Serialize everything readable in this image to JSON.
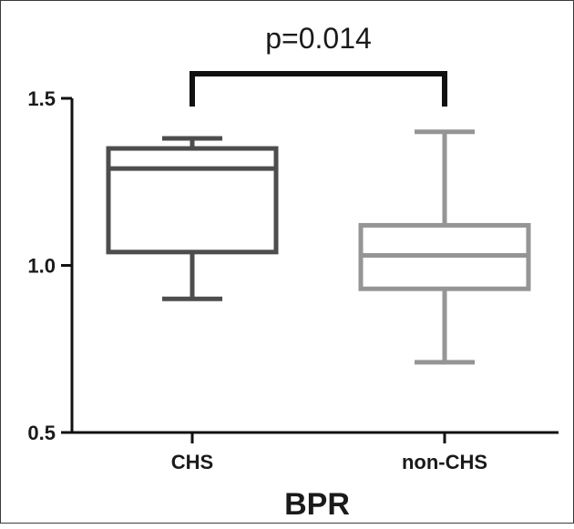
{
  "chart_data": {
    "type": "boxplot",
    "title": "",
    "xlabel": "BPR",
    "ylabel": "",
    "ylim": [
      0.5,
      1.5
    ],
    "y_ticks": [
      "1.5",
      "1.0",
      "0.5"
    ],
    "y_tick_values": [
      1.5,
      1.0,
      0.5
    ],
    "grid": false,
    "categories": [
      "CHS",
      "non-CHS"
    ],
    "series": [
      {
        "category": "CHS",
        "color": "#4d4d4d",
        "min": 0.9,
        "q1": 1.04,
        "median": 1.29,
        "q3": 1.35,
        "max": 1.38
      },
      {
        "category": "non-CHS",
        "color": "#959595",
        "min": 0.71,
        "q1": 0.93,
        "median": 1.03,
        "q3": 1.12,
        "max": 1.4
      }
    ],
    "annotations": [
      {
        "text": "p=0.014",
        "type": "significance-bracket",
        "between": [
          "CHS",
          "non-CHS"
        ]
      }
    ]
  }
}
